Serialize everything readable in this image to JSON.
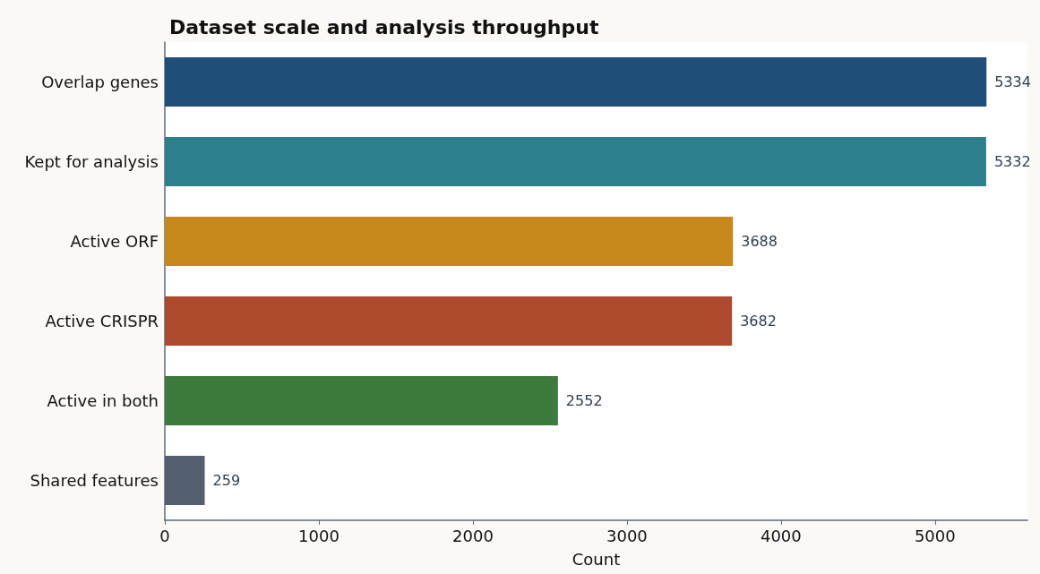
{
  "chart_data": {
    "type": "bar",
    "orientation": "horizontal",
    "title": "Dataset scale and analysis throughput",
    "xlabel": "Count",
    "categories": [
      "Overlap genes",
      "Kept for analysis",
      "Active ORF",
      "Active CRISPR",
      "Active in both",
      "Shared features"
    ],
    "values": [
      5334,
      5332,
      3688,
      3682,
      2552,
      259
    ],
    "colors": [
      "#1f4e79",
      "#2e7f8c",
      "#c8891c",
      "#ad4a2e",
      "#3d7a3d",
      "#546070"
    ],
    "xlim": [
      0,
      5600
    ],
    "xticks": [
      0,
      1000,
      2000,
      3000,
      4000,
      5000
    ],
    "data_labels": true,
    "grid": false
  }
}
